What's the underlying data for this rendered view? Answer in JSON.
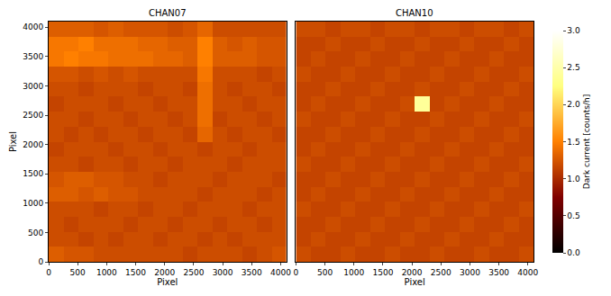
{
  "chart_data": {
    "type": "heatmap",
    "colorbar": {
      "title": "Dark current [counts/h]",
      "range": [
        0,
        3
      ],
      "ticks": [
        {
          "value": 0,
          "label": "0.0"
        },
        0.5,
        {
          "value": 1,
          "label": "1.0"
        },
        1.5,
        {
          "value": 2,
          "label": "2.0"
        },
        2.5,
        {
          "value": 3,
          "label": "3.0"
        }
      ]
    },
    "panels": [
      {
        "title": "CHAN07",
        "x_label": "Pixel",
        "y_label": "Pixel",
        "xlim": [
          0,
          4096
        ],
        "ylim": [
          0,
          4096
        ],
        "xticks": [
          0,
          500,
          1000,
          1500,
          2000,
          2500,
          3000,
          3500,
          4000
        ],
        "yticks": [
          0,
          500,
          1000,
          1500,
          2000,
          2500,
          3000,
          3500,
          4000
        ],
        "x": [
          128,
          384,
          640,
          896,
          1152,
          1408,
          1664,
          1920,
          2176,
          2432,
          2688,
          2944,
          3200,
          3456,
          3712,
          3968
        ],
        "y": [
          128,
          384,
          640,
          896,
          1152,
          1408,
          1664,
          1920,
          2176,
          2432,
          2688,
          2944,
          3200,
          3456,
          3712,
          3968
        ],
        "z": [
          [
            1.3,
            1.25,
            1.25,
            1.2,
            1.2,
            1.2,
            1.2,
            1.2,
            1.2,
            1.15,
            1.2,
            1.2,
            1.2,
            1.15,
            1.2,
            1.25
          ],
          [
            1.2,
            1.2,
            1.15,
            1.2,
            1.15,
            1.2,
            1.2,
            1.15,
            1.2,
            1.2,
            1.15,
            1.2,
            1.15,
            1.2,
            1.2,
            1.2
          ],
          [
            1.2,
            1.15,
            1.2,
            1.2,
            1.2,
            1.15,
            1.2,
            1.2,
            1.15,
            1.2,
            1.2,
            1.15,
            1.2,
            1.2,
            1.15,
            1.2
          ],
          [
            1.2,
            1.2,
            1.2,
            1.15,
            1.2,
            1.2,
            1.15,
            1.2,
            1.2,
            1.15,
            1.2,
            1.2,
            1.2,
            1.15,
            1.2,
            1.2
          ],
          [
            1.3,
            1.3,
            1.25,
            1.3,
            1.25,
            1.25,
            1.2,
            1.2,
            1.2,
            1.2,
            1.15,
            1.2,
            1.2,
            1.2,
            1.15,
            1.2
          ],
          [
            1.25,
            1.3,
            1.3,
            1.25,
            1.25,
            1.2,
            1.2,
            1.15,
            1.2,
            1.2,
            1.2,
            1.15,
            1.2,
            1.2,
            1.2,
            1.15
          ],
          [
            1.2,
            1.2,
            1.15,
            1.2,
            1.2,
            1.15,
            1.2,
            1.2,
            1.15,
            1.2,
            1.2,
            1.2,
            1.15,
            1.2,
            1.2,
            1.2
          ],
          [
            1.15,
            1.2,
            1.2,
            1.2,
            1.15,
            1.2,
            1.2,
            1.15,
            1.2,
            1.2,
            1.15,
            1.2,
            1.2,
            1.15,
            1.2,
            1.2
          ],
          [
            1.2,
            1.15,
            1.2,
            1.15,
            1.2,
            1.2,
            1.15,
            1.2,
            1.2,
            1.15,
            1.35,
            1.2,
            1.15,
            1.2,
            1.2,
            1.15
          ],
          [
            1.2,
            1.2,
            1.15,
            1.2,
            1.2,
            1.15,
            1.2,
            1.2,
            1.15,
            1.2,
            1.4,
            1.15,
            1.2,
            1.2,
            1.15,
            1.2
          ],
          [
            1.15,
            1.2,
            1.2,
            1.2,
            1.15,
            1.2,
            1.2,
            1.15,
            1.2,
            1.2,
            1.4,
            1.2,
            1.2,
            1.15,
            1.2,
            1.2
          ],
          [
            1.2,
            1.2,
            1.15,
            1.2,
            1.2,
            1.2,
            1.15,
            1.2,
            1.2,
            1.15,
            1.4,
            1.2,
            1.15,
            1.2,
            1.2,
            1.15
          ],
          [
            1.25,
            1.25,
            1.2,
            1.25,
            1.2,
            1.25,
            1.2,
            1.2,
            1.2,
            1.2,
            1.45,
            1.2,
            1.2,
            1.2,
            1.15,
            1.2
          ],
          [
            1.45,
            1.5,
            1.45,
            1.45,
            1.4,
            1.4,
            1.4,
            1.35,
            1.35,
            1.3,
            1.5,
            1.3,
            1.3,
            1.3,
            1.25,
            1.25
          ],
          [
            1.45,
            1.45,
            1.5,
            1.4,
            1.4,
            1.4,
            1.35,
            1.35,
            1.3,
            1.3,
            1.5,
            1.3,
            1.25,
            1.3,
            1.25,
            1.25
          ],
          [
            1.3,
            1.3,
            1.3,
            1.25,
            1.3,
            1.25,
            1.25,
            1.25,
            1.2,
            1.25,
            1.35,
            1.2,
            1.2,
            1.2,
            1.2,
            1.2
          ]
        ]
      },
      {
        "title": "CHAN10",
        "x_label": "Pixel",
        "tick_labels": "x",
        "xlim": [
          0,
          4096
        ],
        "ylim": [
          0,
          4096
        ],
        "xticks": [
          0,
          500,
          1000,
          1500,
          2000,
          2500,
          3000,
          3500,
          4000
        ],
        "x": [
          128,
          384,
          640,
          896,
          1152,
          1408,
          1664,
          1920,
          2176,
          2432,
          2688,
          2944,
          3200,
          3456,
          3712,
          3968
        ],
        "y": [
          128,
          384,
          640,
          896,
          1152,
          1408,
          1664,
          1920,
          2176,
          2432,
          2688,
          2944,
          3200,
          3456,
          3712,
          3968
        ],
        "z": [
          [
            1.2,
            1.15,
            1.15,
            1.2,
            1.15,
            1.15,
            1.2,
            1.15,
            1.15,
            1.2,
            1.15,
            1.15,
            1.2,
            1.15,
            1.15,
            1.2
          ],
          [
            1.15,
            1.2,
            1.15,
            1.15,
            1.2,
            1.15,
            1.15,
            1.2,
            1.15,
            1.15,
            1.2,
            1.15,
            1.15,
            1.2,
            1.15,
            1.15
          ],
          [
            1.15,
            1.15,
            1.2,
            1.15,
            1.15,
            1.2,
            1.15,
            1.15,
            1.2,
            1.15,
            1.15,
            1.2,
            1.15,
            1.15,
            1.2,
            1.15
          ],
          [
            1.2,
            1.15,
            1.15,
            1.2,
            1.15,
            1.15,
            1.2,
            1.15,
            1.15,
            1.2,
            1.15,
            1.15,
            1.2,
            1.15,
            1.15,
            1.2
          ],
          [
            1.15,
            1.2,
            1.15,
            1.15,
            1.2,
            1.15,
            1.15,
            1.2,
            1.15,
            1.15,
            1.2,
            1.15,
            1.15,
            1.2,
            1.15,
            1.15
          ],
          [
            1.15,
            1.15,
            1.2,
            1.15,
            1.15,
            1.2,
            1.15,
            1.15,
            1.2,
            1.15,
            1.15,
            1.2,
            1.15,
            1.15,
            1.2,
            1.15
          ],
          [
            1.2,
            1.15,
            1.15,
            1.2,
            1.15,
            1.15,
            1.2,
            1.15,
            1.15,
            1.2,
            1.15,
            1.15,
            1.2,
            1.15,
            1.15,
            1.2
          ],
          [
            1.15,
            1.2,
            1.15,
            1.15,
            1.2,
            1.15,
            1.15,
            1.2,
            1.15,
            1.15,
            1.2,
            1.15,
            1.15,
            1.2,
            1.15,
            1.15
          ],
          [
            1.15,
            1.15,
            1.2,
            1.15,
            1.15,
            1.2,
            1.15,
            1.15,
            1.2,
            1.15,
            1.15,
            1.2,
            1.15,
            1.15,
            1.2,
            1.15
          ],
          [
            1.2,
            1.15,
            1.15,
            1.2,
            1.15,
            1.15,
            1.2,
            1.15,
            1.15,
            1.2,
            1.15,
            1.15,
            1.2,
            1.15,
            1.15,
            1.2
          ],
          [
            1.15,
            1.2,
            1.15,
            1.15,
            1.2,
            1.15,
            1.15,
            1.2,
            2.4,
            1.15,
            1.2,
            1.15,
            1.15,
            1.2,
            1.15,
            1.15
          ],
          [
            1.15,
            1.15,
            1.2,
            1.15,
            1.15,
            1.2,
            1.15,
            1.15,
            1.2,
            1.15,
            1.15,
            1.2,
            1.15,
            1.15,
            1.2,
            1.15
          ],
          [
            1.2,
            1.15,
            1.15,
            1.2,
            1.15,
            1.15,
            1.2,
            1.15,
            1.15,
            1.2,
            1.15,
            1.15,
            1.2,
            1.15,
            1.15,
            1.2
          ],
          [
            1.15,
            1.2,
            1.15,
            1.15,
            1.2,
            1.15,
            1.15,
            1.2,
            1.15,
            1.15,
            1.2,
            1.15,
            1.15,
            1.2,
            1.15,
            1.15
          ],
          [
            1.15,
            1.15,
            1.2,
            1.15,
            1.15,
            1.2,
            1.15,
            1.15,
            1.2,
            1.15,
            1.15,
            1.2,
            1.15,
            1.15,
            1.2,
            1.15
          ],
          [
            1.2,
            1.2,
            1.15,
            1.2,
            1.2,
            1.15,
            1.2,
            1.2,
            1.15,
            1.2,
            1.2,
            1.15,
            1.2,
            1.2,
            1.15,
            1.2
          ]
        ]
      }
    ]
  }
}
